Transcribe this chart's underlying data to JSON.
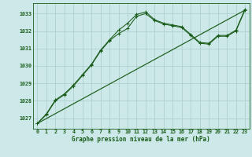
{
  "title": "Graphe pression niveau de la mer (hPa)",
  "bg_color": "#cce8e8",
  "grid_color": "#aacccc",
  "line_color": "#1a5c1a",
  "xlim": [
    -0.5,
    23.5
  ],
  "ylim": [
    1026.4,
    1033.6
  ],
  "yticks": [
    1027,
    1028,
    1029,
    1030,
    1031,
    1032,
    1033
  ],
  "xticks": [
    0,
    1,
    2,
    3,
    4,
    5,
    6,
    7,
    8,
    9,
    10,
    11,
    12,
    13,
    14,
    15,
    16,
    17,
    18,
    19,
    20,
    21,
    22,
    23
  ],
  "series1": [
    1026.7,
    1027.2,
    1028.0,
    1028.35,
    1028.85,
    1029.45,
    1030.05,
    1030.85,
    1031.45,
    1031.85,
    1032.15,
    1032.85,
    1033.0,
    1032.6,
    1032.4,
    1032.3,
    1032.2,
    1031.75,
    1031.3,
    1031.25,
    1031.7,
    1031.7,
    1032.0,
    1033.2
  ],
  "series2": [
    1026.7,
    1027.25,
    1028.05,
    1028.4,
    1028.9,
    1029.5,
    1030.1,
    1030.9,
    1031.5,
    1032.05,
    1032.45,
    1032.95,
    1033.1,
    1032.65,
    1032.45,
    1032.35,
    1032.25,
    1031.8,
    1031.35,
    1031.3,
    1031.75,
    1031.75,
    1032.05,
    1033.25
  ],
  "trend_x": [
    0,
    23
  ],
  "trend_y": [
    1026.7,
    1033.2
  ],
  "xlabel_fontsize": 5.5,
  "tick_fontsize": 4.8
}
